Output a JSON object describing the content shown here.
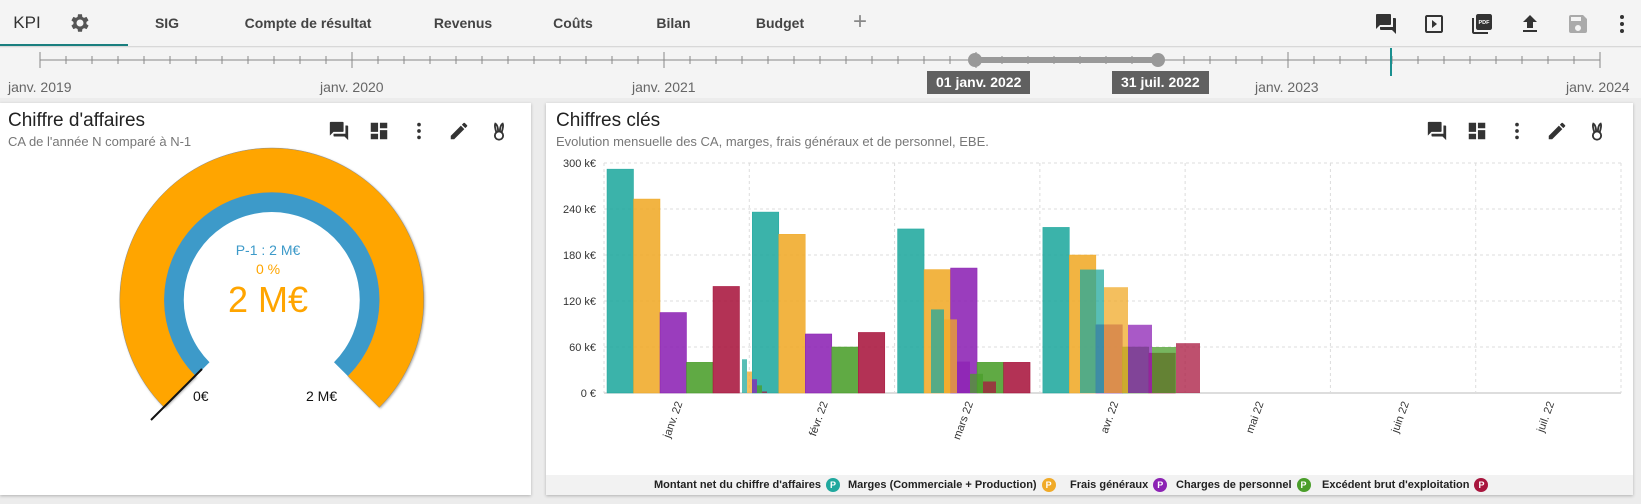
{
  "nav": {
    "tabs": [
      {
        "label": "KPI",
        "active": true
      },
      {
        "label": "SIG"
      },
      {
        "label": "Compte de résultat"
      },
      {
        "label": "Revenus"
      },
      {
        "label": "Coûts"
      },
      {
        "label": "Bilan"
      },
      {
        "label": "Budget"
      }
    ],
    "add_tab": "+"
  },
  "timeline": {
    "labels": [
      "janv. 2019",
      "janv. 2020",
      "janv. 2021",
      "janv. 2023",
      "janv. 2024"
    ],
    "range_start": "01 janv. 2022",
    "range_end": "31 juil. 2022",
    "accent": "#1a8f8f"
  },
  "revenue_card": {
    "title": "Chiffre d'affaires",
    "subtitle": "CA de l'année N comparé à N-1",
    "previous": "P-1 : 2 M€",
    "percent": "0 %",
    "value": "2 M€",
    "min_label": "0€",
    "max_label": "2 M€",
    "colors": {
      "outer": "#FFA500",
      "inner": "#3d9ac9"
    }
  },
  "keyfigs_card": {
    "title": "Chiffres clés",
    "subtitle": "Evolution mensuelle des CA, marges, frais généraux et de personnel, EBE."
  },
  "chart_data": {
    "type": "bar",
    "categories": [
      "janv. 22",
      "févr. 22",
      "mars 22",
      "avr. 22",
      "mai 22",
      "juin 22",
      "juil. 22"
    ],
    "y_ticks": [
      "0 €",
      "60 k€",
      "120 k€",
      "180 k€",
      "240 k€",
      "300 k€"
    ],
    "ylim": [
      0,
      300
    ],
    "grid": true,
    "legend_position": "bottom",
    "series": [
      {
        "name": "Montant net du chiffre d'affaires",
        "letter": "P",
        "color": "#20a89e",
        "values": [
          292,
          236,
          214,
          216,
          null,
          null,
          null
        ]
      },
      {
        "name": "Marges (Commerciale + Production)",
        "letter": "P",
        "color": "#f0aa28",
        "values": [
          253,
          207,
          161,
          180,
          null,
          null,
          null
        ]
      },
      {
        "name": "Frais généraux",
        "letter": "P",
        "color": "#8c22b4",
        "values": [
          105,
          77,
          163,
          89,
          null,
          null,
          null
        ]
      },
      {
        "name": "Charges de personnel",
        "letter": "P",
        "color": "#4a9e2a",
        "values": [
          40,
          60,
          40,
          60,
          null,
          null,
          null
        ]
      },
      {
        "name": "Excédent brut d'exploitation",
        "letter": "P",
        "color": "#a8163e",
        "values": [
          139,
          79,
          40,
          52,
          null,
          null,
          null
        ]
      }
    ],
    "overlay_series": [
      {
        "month": "févr. 22",
        "values": [
          44,
          28,
          18,
          10,
          2
        ]
      },
      {
        "month": "mars 22",
        "values": [
          109,
          96,
          41,
          25,
          15
        ]
      },
      {
        "month": "avr. 22",
        "values": [
          161,
          138,
          89,
          60,
          65
        ]
      }
    ]
  }
}
